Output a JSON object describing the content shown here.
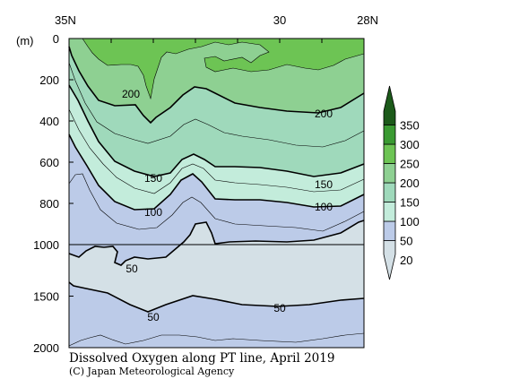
{
  "chart_data": {
    "type": "heatmap",
    "title": "Dissolved Oxygen along PT line, April 2019",
    "credit": "(C) Japan Meteorological Agency",
    "x_axis": {
      "ticks": [
        {
          "value": 35,
          "label": "35N"
        },
        {
          "value": 30,
          "label": "30"
        },
        {
          "value": 28,
          "label": "28N"
        }
      ],
      "range": [
        35,
        28
      ]
    },
    "y_axis": {
      "unit_label": "(m)",
      "ticks": [
        {
          "value": 0,
          "label": "0"
        },
        {
          "value": 200,
          "label": "200"
        },
        {
          "value": 400,
          "label": "400"
        },
        {
          "value": 600,
          "label": "600"
        },
        {
          "value": 800,
          "label": "800"
        },
        {
          "value": 1000,
          "label": "1000"
        },
        {
          "value": 1500,
          "label": "1500"
        },
        {
          "value": 2000,
          "label": "2000"
        }
      ],
      "range": [
        0,
        2000
      ],
      "scale_break_at": 1000
    },
    "colorbar": {
      "labels": [
        "20",
        "50",
        "100",
        "150",
        "200",
        "250",
        "300",
        "350"
      ],
      "colors": [
        "#d4e0e6",
        "#bccbe8",
        "#c3ecdb",
        "#9fd9bb",
        "#8ed092",
        "#6dc454",
        "#3a9a32",
        "#1c5a1a"
      ]
    },
    "contour_labels": [
      {
        "text": "200"
      },
      {
        "text": "200"
      },
      {
        "text": "150"
      },
      {
        "text": "150"
      },
      {
        "text": "100"
      },
      {
        "text": "100"
      },
      {
        "text": "50"
      },
      {
        "text": "50"
      },
      {
        "text": "50"
      }
    ]
  }
}
